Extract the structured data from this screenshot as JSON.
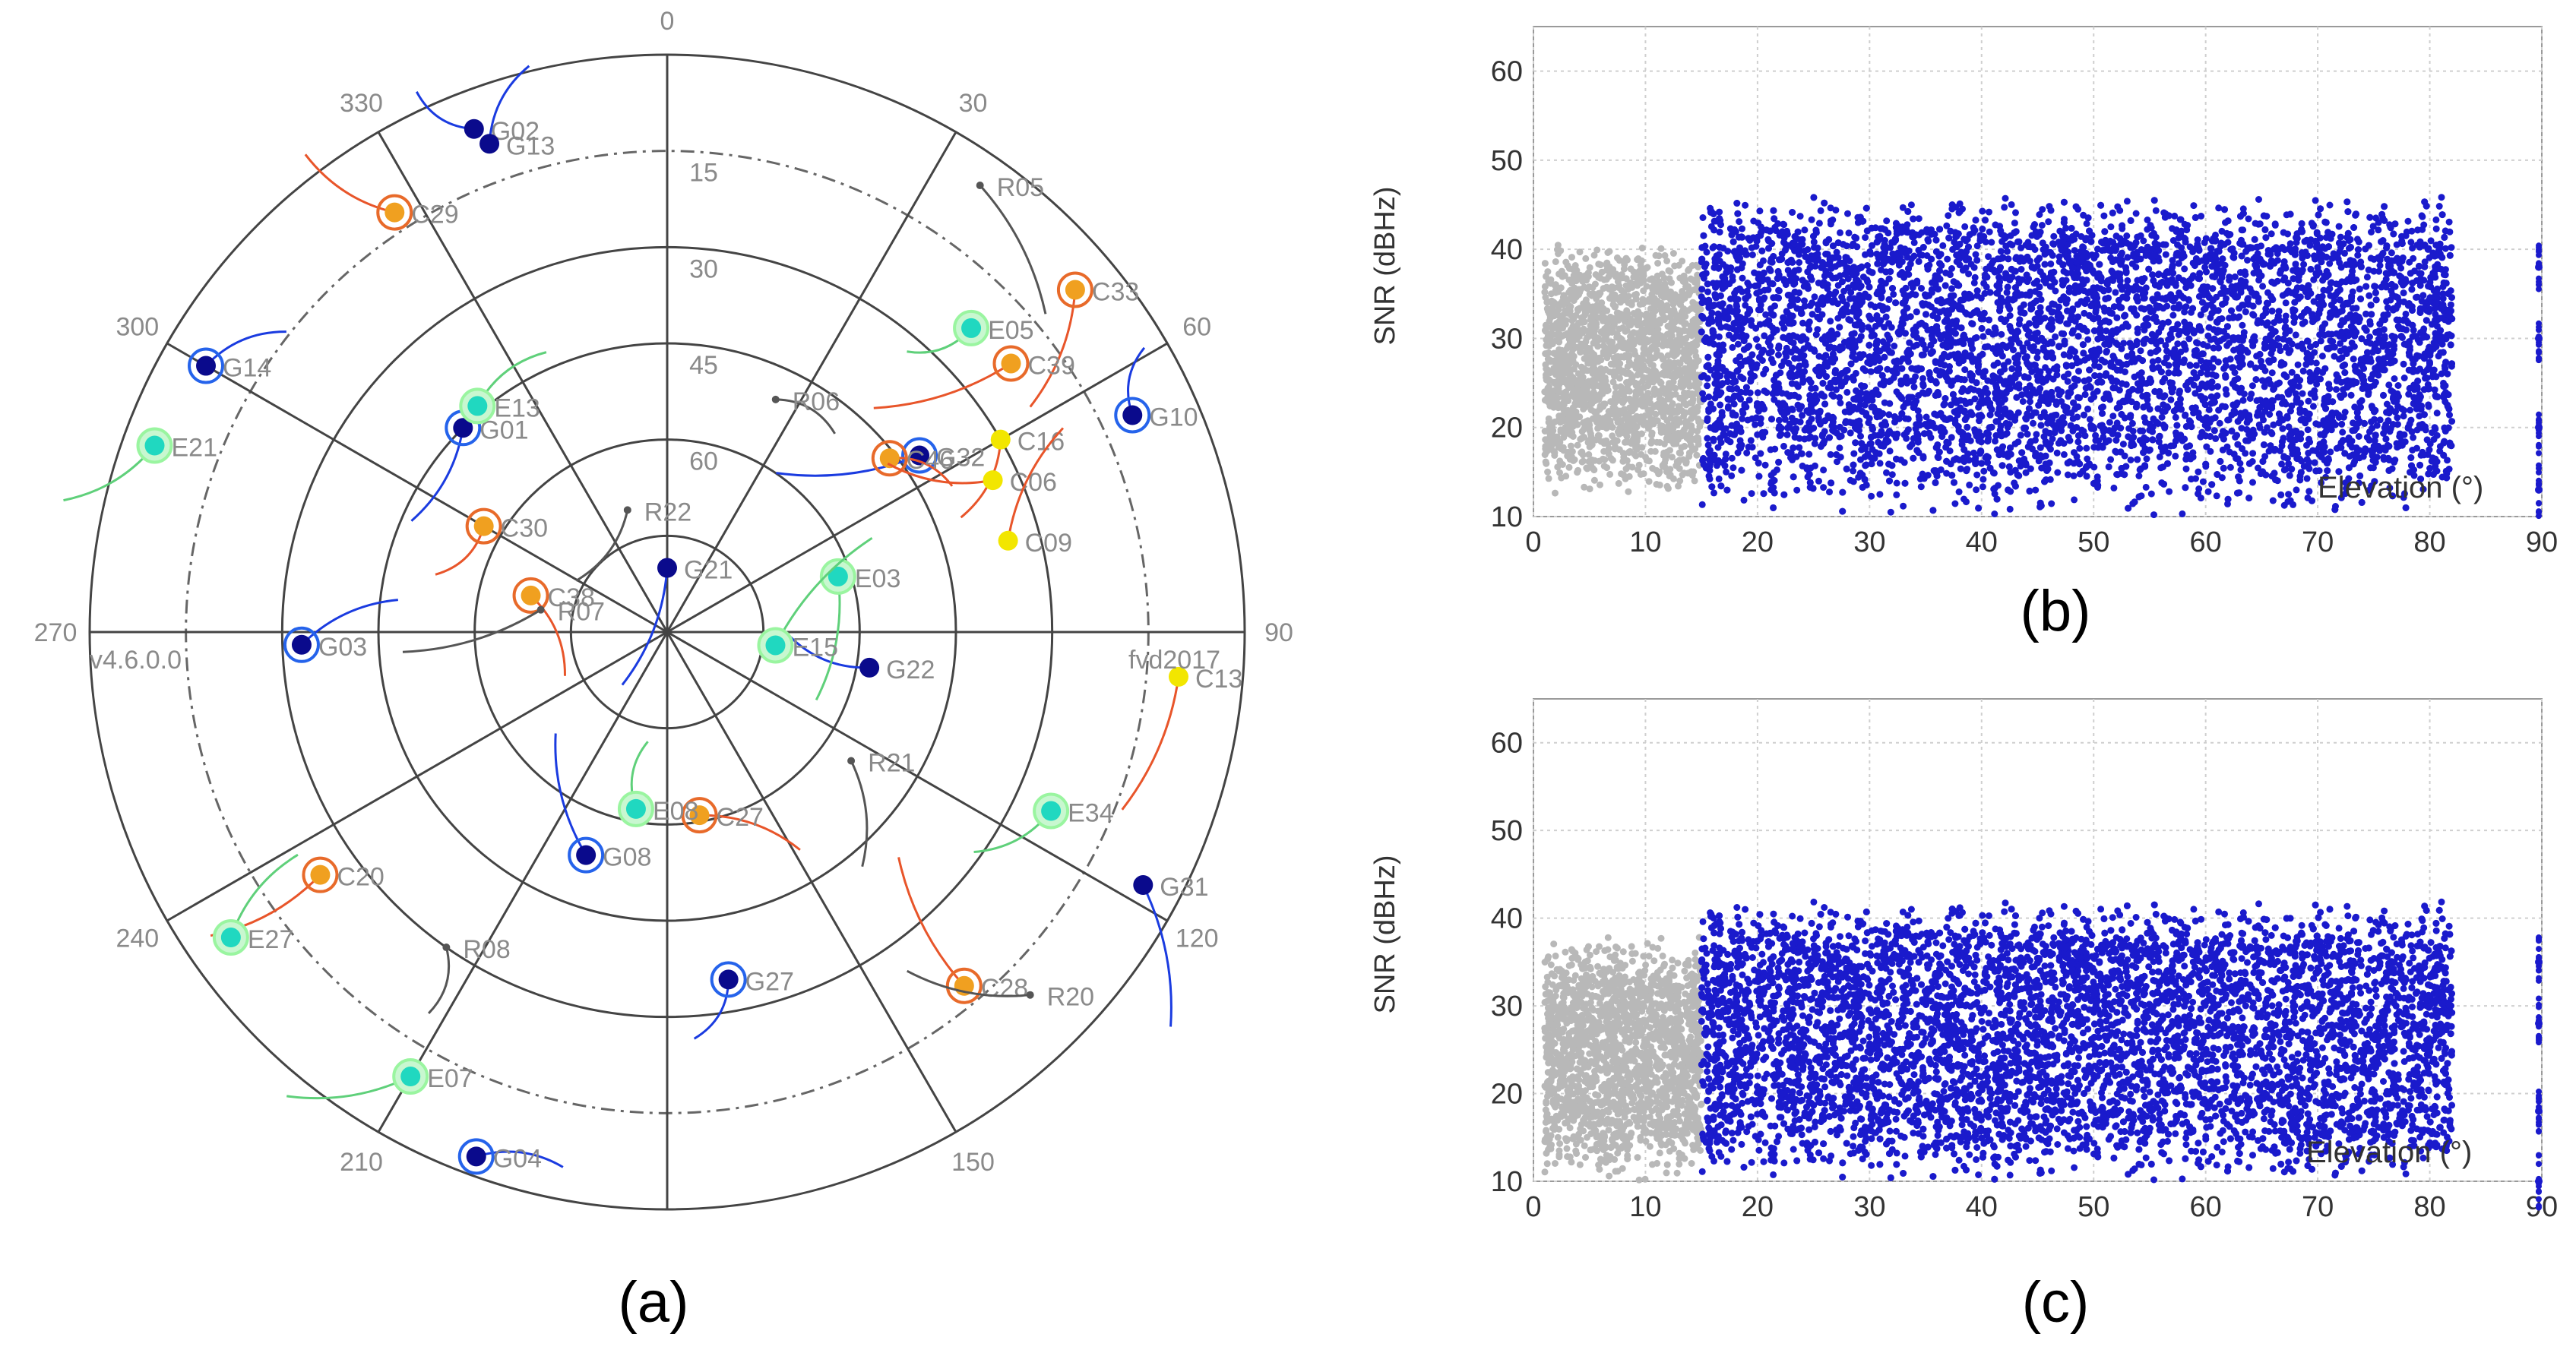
{
  "colors": {
    "gps": "#0a0a8c",
    "gps_ring": "#2563eb",
    "beidou": "#f0a020",
    "beidou_ring": "#e86a2a",
    "beidou_plain": "#f2e600",
    "galileo": "#20d8c0",
    "galileo_ring": "#9af5a0",
    "glonass": "#555555",
    "snr_high": "#1a1acc",
    "snr_low": "#b8b8b8",
    "axis_text": "#8a8a8a",
    "grid": "#cfcfcf"
  },
  "panels": {
    "a": {
      "caption": "(a)",
      "label_left": "v4.6.0.0",
      "label_right": "fvd2017"
    },
    "b": {
      "caption": "(b)",
      "inplot_label": "Elevation (°)",
      "ylabel": "SNR (dBHz)"
    },
    "c": {
      "caption": "(c)",
      "inplot_label": "Elevation (°)",
      "ylabel": "SNR (dBHz)"
    }
  },
  "chart_data": [
    {
      "type": "scatter",
      "subtype": "polar-skyplot",
      "azimuth_ticks": [
        0,
        30,
        60,
        90,
        120,
        150,
        210,
        240,
        270,
        300,
        330
      ],
      "elevation_ticks": [
        15,
        30,
        45,
        60
      ],
      "elevation_range": [
        0,
        90
      ],
      "azimuth_spokes_step": 30,
      "mask_elevation_dashed": 15,
      "satellites": [
        {
          "name": "G02",
          "sys": "gps",
          "az": 339,
          "el": 6,
          "ring": false
        },
        {
          "name": "G14",
          "sys": "gps",
          "az": 300,
          "el": 7,
          "ring": true
        },
        {
          "name": "G01",
          "sys": "gps",
          "az": 315,
          "el": 45,
          "ring": true
        },
        {
          "name": "G21",
          "sys": "gps",
          "az": 0,
          "el": 80,
          "ring": false
        },
        {
          "name": "G32",
          "sys": "gps",
          "az": 55,
          "el": 42,
          "ring": true
        },
        {
          "name": "G10",
          "sys": "gps",
          "az": 65,
          "el": 10,
          "ring": true
        },
        {
          "name": "G22",
          "sys": "gps",
          "az": 100,
          "el": 58,
          "ring": false
        },
        {
          "name": "G03",
          "sys": "gps",
          "az": 268,
          "el": 33,
          "ring": true
        },
        {
          "name": "G08",
          "sys": "gps",
          "az": 200,
          "el": 53,
          "ring": true
        },
        {
          "name": "G31",
          "sys": "gps",
          "az": 118,
          "el": 6,
          "ring": false
        },
        {
          "name": "G27",
          "sys": "gps",
          "az": 170,
          "el": 35,
          "ring": true
        },
        {
          "name": "G04",
          "sys": "gps",
          "az": 200,
          "el": 3,
          "ring": true
        },
        {
          "name": "C29",
          "sys": "beidou",
          "az": 327,
          "el": 12,
          "ring": true
        },
        {
          "name": "C33",
          "sys": "beidou",
          "az": 50,
          "el": 7,
          "ring": true
        },
        {
          "name": "C39",
          "sys": "beidou",
          "az": 52,
          "el": 22,
          "ring": true
        },
        {
          "name": "C30",
          "sys": "beidou",
          "az": 300,
          "el": 57,
          "ring": true
        },
        {
          "name": "C38",
          "sys": "beidou",
          "az": 285,
          "el": 68,
          "ring": true
        },
        {
          "name": "C27",
          "sys": "beidou",
          "az": 170,
          "el": 61,
          "ring": true
        },
        {
          "name": "C20",
          "sys": "beidou",
          "az": 235,
          "el": 24,
          "ring": true
        },
        {
          "name": "C28",
          "sys": "beidou",
          "az": 140,
          "el": 18,
          "ring": true
        },
        {
          "name": "C46",
          "sys": "beidou",
          "az": 52,
          "el": 46,
          "ring": true
        },
        {
          "name": "C16",
          "sys": "beidou",
          "az": 60,
          "el": 30,
          "ring": false
        },
        {
          "name": "C06",
          "sys": "beidou",
          "az": 65,
          "el": 34,
          "ring": false
        },
        {
          "name": "C09",
          "sys": "beidou",
          "az": 75,
          "el": 35,
          "ring": false
        },
        {
          "name": "C13",
          "sys": "beidou",
          "az": 95,
          "el": 10,
          "ring": false
        },
        {
          "name": "E05",
          "sys": "galileo",
          "az": 45,
          "el": 23,
          "ring": true
        },
        {
          "name": "E13",
          "sys": "galileo",
          "az": 320,
          "el": 44,
          "ring": true
        },
        {
          "name": "E21",
          "sys": "galileo",
          "az": 290,
          "el": 5,
          "ring": true
        },
        {
          "name": "E03",
          "sys": "galileo",
          "az": 72,
          "el": 62,
          "ring": true
        },
        {
          "name": "E15",
          "sys": "galileo",
          "az": 97,
          "el": 73,
          "ring": true
        },
        {
          "name": "E08",
          "sys": "galileo",
          "az": 190,
          "el": 62,
          "ring": true
        },
        {
          "name": "E34",
          "sys": "galileo",
          "az": 115,
          "el": 24,
          "ring": true
        },
        {
          "name": "E27",
          "sys": "galileo",
          "az": 235,
          "el": 7,
          "ring": true
        },
        {
          "name": "E07",
          "sys": "galileo",
          "az": 210,
          "el": 10,
          "ring": true
        },
        {
          "name": "R05",
          "sys": "glonass",
          "az": 35,
          "el": 5,
          "ring": false
        },
        {
          "name": "R06",
          "sys": "glonass",
          "az": 25,
          "el": 50,
          "ring": false
        },
        {
          "name": "R22",
          "sys": "glonass",
          "az": 342,
          "el": 70,
          "ring": false
        },
        {
          "name": "R21",
          "sys": "glonass",
          "az": 125,
          "el": 55,
          "ring": false
        },
        {
          "name": "R20",
          "sys": "glonass",
          "az": 135,
          "el": 10,
          "ring": false
        },
        {
          "name": "R07",
          "sys": "glonass",
          "az": 280,
          "el": 70,
          "ring": false
        },
        {
          "name": "R08",
          "sys": "glonass",
          "az": 215,
          "el": 30,
          "ring": false
        },
        {
          "name": "G13",
          "sys": "gps",
          "az": 340,
          "el": 9,
          "ring": false
        }
      ]
    },
    {
      "type": "scatter",
      "xlabel": "Elevation (°)",
      "ylabel": "SNR (dBHz)",
      "xlim": [
        0,
        90
      ],
      "ylim": [
        10,
        65
      ],
      "xticks": [
        0,
        10,
        20,
        30,
        40,
        50,
        60,
        70,
        80,
        90
      ],
      "yticks": [
        10,
        20,
        30,
        40,
        50,
        60
      ],
      "grid": true,
      "series": [
        {
          "color": "gray",
          "x_range": [
            1,
            15
          ],
          "snr_low": [
            12,
            20
          ],
          "snr_high": [
            33,
            41
          ]
        },
        {
          "color": "blue",
          "x_range": [
            15,
            82
          ],
          "snr_low": [
            10,
            18
          ],
          "snr_high": [
            40,
            46
          ]
        }
      ],
      "isolated_points": [
        [
          90,
          13
        ],
        [
          90,
          20
        ],
        [
          90,
          30
        ],
        [
          90,
          38
        ]
      ]
    },
    {
      "type": "scatter",
      "xlabel": "Elevation (°)",
      "ylabel": "SNR (dBHz)",
      "xlim": [
        0,
        90
      ],
      "ylim": [
        10,
        65
      ],
      "xticks": [
        0,
        10,
        20,
        30,
        40,
        50,
        60,
        70,
        80,
        90
      ],
      "yticks": [
        10,
        20,
        30,
        40,
        50,
        60
      ],
      "grid": true,
      "series": [
        {
          "color": "gray",
          "x_range": [
            1,
            15
          ],
          "snr_low": [
            10,
            17
          ],
          "snr_high": [
            30,
            38
          ]
        },
        {
          "color": "blue",
          "x_range": [
            15,
            82
          ],
          "snr_low": [
            10,
            16
          ],
          "snr_high": [
            36,
            42
          ]
        }
      ],
      "isolated_points": [
        [
          90,
          10
        ],
        [
          90,
          18
        ],
        [
          90,
          28
        ],
        [
          90,
          35
        ]
      ]
    }
  ]
}
